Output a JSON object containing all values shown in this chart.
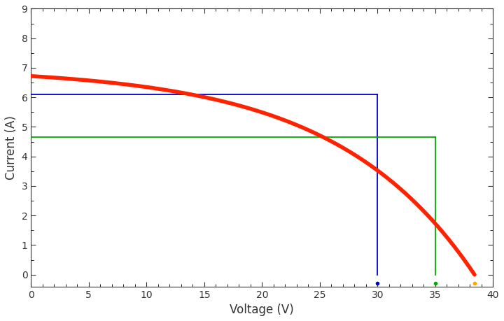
{
  "title": "",
  "xlabel": "Voltage (V)",
  "ylabel": "Current (A)",
  "xlim": [
    0,
    40
  ],
  "ylim": [
    -0.4,
    9
  ],
  "iv_color": "#FF2200",
  "iv_linewidth": 4.0,
  "blue_color": "#0000CC",
  "green_color": "#00AA00",
  "annotation_linewidth": 1.3,
  "Isc": 6.72,
  "Voc": 38.4,
  "blue_I": 6.1,
  "blue_V": 30.0,
  "green_I": 4.65,
  "green_V": 35.0,
  "dot_blue_color": "#0000CC",
  "dot_green_color": "#00AA00",
  "dot_orange_color": "#FFA500",
  "dot_y": -0.3,
  "yticks": [
    0,
    1,
    2,
    3,
    4,
    5,
    6,
    7,
    8,
    9
  ],
  "xticks": [
    0,
    5,
    10,
    15,
    20,
    25,
    30,
    35,
    40
  ],
  "figsize": [
    7.2,
    4.59
  ],
  "dpi": 100,
  "iv_n": 12.0,
  "iv_Voc": 38.4,
  "iv_Isc": 6.72
}
